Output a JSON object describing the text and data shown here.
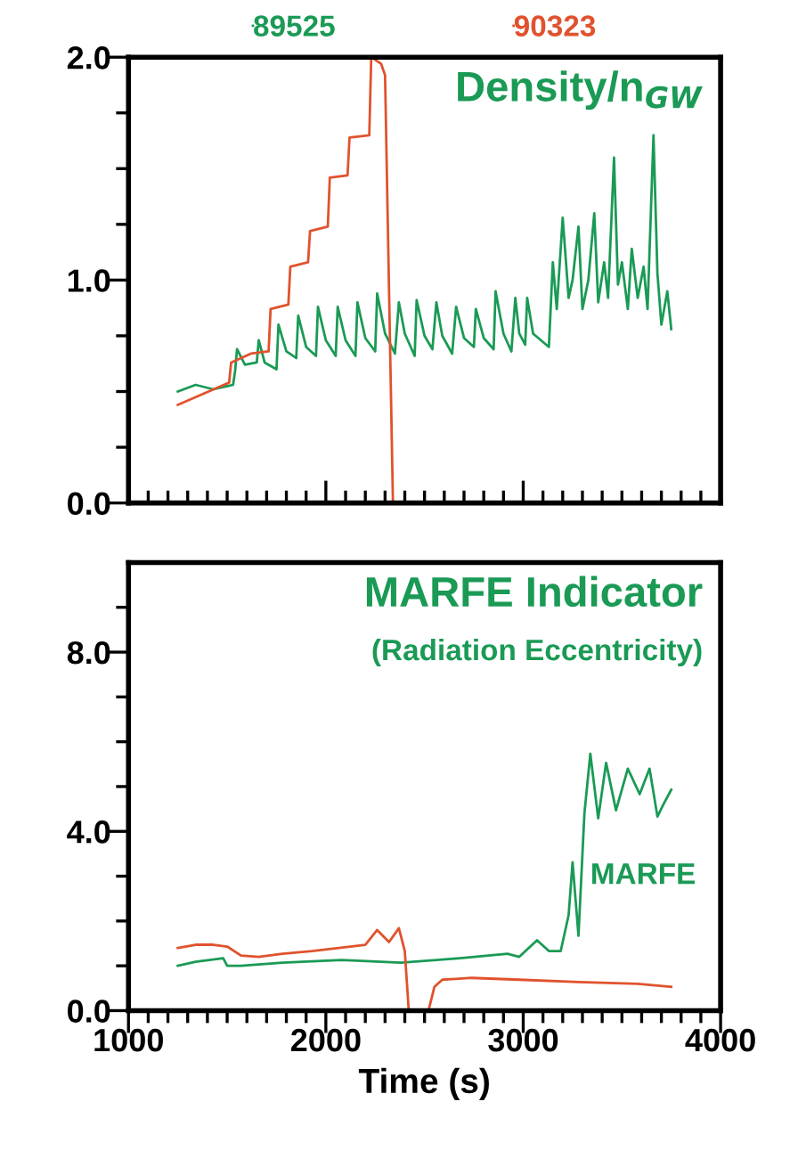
{
  "chart_data": [
    {
      "type": "line",
      "legend": "top",
      "tick_labels": "y",
      "annotations": [
        "Density/n$_{GW}$"
      ],
      "xlim": [
        1000,
        4000
      ],
      "xticks": [
        1000,
        {
          "value": 1100,
          "label": null
        },
        {
          "value": 1200,
          "label": null
        },
        {
          "value": 1300,
          "label": null
        },
        {
          "value": 1400,
          "label": null
        },
        {
          "value": 1500,
          "label": null
        },
        {
          "value": 1600,
          "label": null
        },
        {
          "value": 1700,
          "label": null
        },
        {
          "value": 1800,
          "label": null
        },
        {
          "value": 1900,
          "label": null
        },
        2000,
        {
          "value": 2100,
          "label": null
        },
        {
          "value": 2200,
          "label": null
        },
        {
          "value": 2300,
          "label": null
        },
        {
          "value": 2400,
          "label": null
        },
        {
          "value": 2500,
          "label": null
        },
        {
          "value": 2600,
          "label": null
        },
        {
          "value": 2700,
          "label": null
        },
        {
          "value": 2800,
          "label": null
        },
        {
          "value": 2900,
          "label": null
        },
        3000,
        {
          "value": 3100,
          "label": null
        },
        {
          "value": 3200,
          "label": null
        },
        {
          "value": 3300,
          "label": null
        },
        {
          "value": 3400,
          "label": null
        },
        {
          "value": 3500,
          "label": null
        },
        {
          "value": 3600,
          "label": null
        },
        {
          "value": 3700,
          "label": null
        },
        {
          "value": 3800,
          "label": null
        },
        {
          "value": 3900,
          "label": null
        },
        4000
      ],
      "ylim": [
        0,
        2
      ],
      "yticks": [
        {
          "value": 0,
          "label": "0.0"
        },
        {
          "value": 0.25,
          "label": null
        },
        {
          "value": 0.5,
          "label": null
        },
        {
          "value": 0.75,
          "label": null
        },
        {
          "value": 1,
          "label": "1.0"
        },
        {
          "value": 1.25,
          "label": null
        },
        {
          "value": 1.5,
          "label": null
        },
        {
          "value": 1.75,
          "label": null
        },
        {
          "value": 2,
          "label": "2.0"
        }
      ],
      "series": [
        {
          "name": "89525",
          "color": "#1a9a55",
          "x": [
            1250,
            1340,
            1430,
            1530,
            1540,
            1550,
            1590,
            1650,
            1660,
            1690,
            1750,
            1760,
            1800,
            1850,
            1860,
            1900,
            1950,
            1960,
            2000,
            2050,
            2060,
            2100,
            2150,
            2160,
            2200,
            2250,
            2260,
            2300,
            2350,
            2370,
            2400,
            2450,
            2460,
            2500,
            2540,
            2560,
            2590,
            2640,
            2660,
            2700,
            2750,
            2760,
            2800,
            2850,
            2860,
            2900,
            2940,
            2960,
            2980,
            3010,
            3020,
            3050,
            3130,
            3150,
            3170,
            3200,
            3230,
            3250,
            3280,
            3300,
            3330,
            3360,
            3380,
            3410,
            3430,
            3460,
            3480,
            3500,
            3530,
            3550,
            3580,
            3610,
            3630,
            3660,
            3680,
            3700,
            3730,
            3750
          ],
          "values": [
            0.5,
            0.53,
            0.51,
            0.53,
            0.59,
            0.69,
            0.62,
            0.63,
            0.73,
            0.63,
            0.6,
            0.8,
            0.68,
            0.65,
            0.84,
            0.7,
            0.66,
            0.88,
            0.73,
            0.66,
            0.88,
            0.73,
            0.66,
            0.9,
            0.74,
            0.68,
            0.94,
            0.76,
            0.67,
            0.9,
            0.76,
            0.66,
            0.91,
            0.75,
            0.69,
            0.9,
            0.75,
            0.67,
            0.88,
            0.74,
            0.7,
            0.87,
            0.74,
            0.69,
            0.95,
            0.76,
            0.68,
            0.92,
            0.76,
            0.71,
            0.92,
            0.76,
            0.7,
            1.08,
            0.87,
            1.28,
            0.92,
            1.0,
            1.24,
            0.87,
            1.0,
            1.3,
            0.9,
            1.08,
            0.92,
            1.55,
            0.98,
            1.08,
            0.87,
            1.14,
            0.92,
            1.06,
            0.87,
            1.65,
            1.03,
            0.8,
            0.95,
            0.78
          ]
        },
        {
          "name": "90323",
          "color": "#e0522e",
          "x": [
            1250,
            1510,
            1520,
            1620,
            1710,
            1720,
            1810,
            1820,
            1910,
            1920,
            2010,
            2020,
            2110,
            2120,
            2220,
            2230,
            2280,
            2300,
            2340,
            3750
          ],
          "values": [
            0.44,
            0.54,
            0.63,
            0.67,
            0.68,
            0.87,
            0.89,
            1.06,
            1.08,
            1.22,
            1.24,
            1.46,
            1.47,
            1.64,
            1.65,
            2.0,
            1.97,
            1.92,
            0.0,
            0.0
          ]
        }
      ]
    },
    {
      "type": "line",
      "xlabel": "Time (s)",
      "annotations": [
        "MARFE Indicator",
        "(Radiation Eccentricity)",
        {
          "text": "MARFE",
          "x": 3340,
          "y": 3.0
        }
      ],
      "xlim": [
        1000,
        4000
      ],
      "xticks": [
        1000,
        {
          "value": 1100,
          "label": null
        },
        {
          "value": 1200,
          "label": null
        },
        {
          "value": 1300,
          "label": null
        },
        {
          "value": 1400,
          "label": null
        },
        {
          "value": 1500,
          "label": null
        },
        {
          "value": 1600,
          "label": null
        },
        {
          "value": 1700,
          "label": null
        },
        {
          "value": 1800,
          "label": null
        },
        {
          "value": 1900,
          "label": null
        },
        2000,
        {
          "value": 2100,
          "label": null
        },
        {
          "value": 2200,
          "label": null
        },
        {
          "value": 2300,
          "label": null
        },
        {
          "value": 2400,
          "label": null
        },
        {
          "value": 2500,
          "label": null
        },
        {
          "value": 2600,
          "label": null
        },
        {
          "value": 2700,
          "label": null
        },
        {
          "value": 2800,
          "label": null
        },
        {
          "value": 2900,
          "label": null
        },
        3000,
        {
          "value": 3100,
          "label": null
        },
        {
          "value": 3200,
          "label": null
        },
        {
          "value": 3300,
          "label": null
        },
        {
          "value": 3400,
          "label": null
        },
        {
          "value": 3500,
          "label": null
        },
        {
          "value": 3600,
          "label": null
        },
        {
          "value": 3700,
          "label": null
        },
        {
          "value": 3800,
          "label": null
        },
        {
          "value": 3900,
          "label": null
        },
        4000
      ],
      "ylim": [
        0,
        10
      ],
      "yticks": [
        {
          "value": 0,
          "label": "0.0"
        },
        {
          "value": 1,
          "label": null
        },
        {
          "value": 2,
          "label": null
        },
        {
          "value": 3,
          "label": null
        },
        {
          "value": 4,
          "label": "4.0"
        },
        {
          "value": 5,
          "label": null
        },
        {
          "value": 6,
          "label": null
        },
        {
          "value": 7,
          "label": null
        },
        {
          "value": 8,
          "label": "8.0"
        },
        {
          "value": 9,
          "label": null
        }
      ],
      "series": [
        {
          "color": "#1a9a55",
          "x": [
            1250,
            1340,
            1480,
            1500,
            1570,
            1780,
            2080,
            2380,
            2680,
            2920,
            2980,
            3070,
            3130,
            3190,
            3230,
            3250,
            3280,
            3310,
            3340,
            3380,
            3420,
            3470,
            3530,
            3590,
            3640,
            3680,
            3710,
            3750
          ],
          "values": [
            1.0,
            1.09,
            1.17,
            1.0,
            1.0,
            1.07,
            1.13,
            1.07,
            1.17,
            1.27,
            1.2,
            1.57,
            1.33,
            1.33,
            2.13,
            3.31,
            1.67,
            4.4,
            5.73,
            4.29,
            5.53,
            4.47,
            5.4,
            4.83,
            5.4,
            4.33,
            4.6,
            4.93
          ]
        },
        {
          "color": "#e0522e",
          "x": [
            1250,
            1340,
            1430,
            1500,
            1570,
            1660,
            1780,
            1930,
            2200,
            2260,
            2320,
            2370,
            2400,
            2420,
            2470,
            2520,
            2550,
            2590,
            2740,
            2980,
            3280,
            3580,
            3750
          ],
          "values": [
            1.4,
            1.47,
            1.47,
            1.43,
            1.23,
            1.2,
            1.27,
            1.33,
            1.47,
            1.8,
            1.53,
            1.84,
            1.33,
            0.0,
            null,
            0.0,
            0.53,
            0.69,
            0.73,
            0.69,
            0.64,
            0.6,
            0.53
          ]
        }
      ]
    }
  ]
}
